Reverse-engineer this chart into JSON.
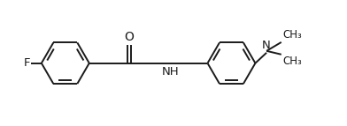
{
  "bg_color": "#ffffff",
  "line_color": "#1a1a1a",
  "line_width": 1.4,
  "font_size": 9.5,
  "figure_width": 3.92,
  "figure_height": 1.43,
  "dpi": 100,
  "xlim": [
    0,
    9.8
  ],
  "ylim": [
    0,
    3.57
  ]
}
